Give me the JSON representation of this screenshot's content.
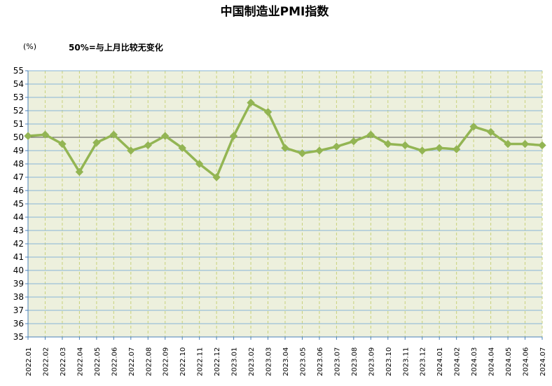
{
  "chart_data": {
    "type": "line",
    "title": "中国制造业PMI指数",
    "unit_label": "(%)",
    "annotation": "50%=与上月比较无变化",
    "ylim": [
      35,
      55
    ],
    "ytick_step": 1,
    "reference_line": 50,
    "grid": true,
    "colors": {
      "plot_background": "#edf0dd",
      "line": "#93b553",
      "horizontal_grid": "#86b3d8",
      "vertical_grid": "#c8d27a",
      "reference_line": "#555555",
      "axis": "#4a80b8"
    },
    "categories": [
      "2022.01",
      "2022.02",
      "2022.03",
      "2022.04",
      "2022.05",
      "2022.06",
      "2022.07",
      "2022.08",
      "2022.09",
      "2022.10",
      "2022.11",
      "2022.12",
      "2023.01",
      "2023.02",
      "2023.03",
      "2023.04",
      "2023.05",
      "2023.06",
      "2023.07",
      "2023.08",
      "2023.09",
      "2023.10",
      "2023.11",
      "2023.12",
      "2024.01",
      "2024.02",
      "2024.03",
      "2024.04",
      "2024.05",
      "2024.06",
      "2024.07"
    ],
    "series": [
      {
        "values": [
          50.1,
          50.2,
          49.5,
          47.4,
          49.6,
          50.2,
          49.0,
          49.4,
          50.1,
          49.2,
          48.0,
          47.0,
          50.1,
          52.6,
          51.9,
          49.2,
          48.8,
          49.0,
          49.3,
          49.7,
          50.2,
          49.5,
          49.4,
          49.0,
          49.2,
          49.1,
          50.8,
          50.4,
          49.5,
          49.5,
          49.4
        ]
      }
    ]
  }
}
